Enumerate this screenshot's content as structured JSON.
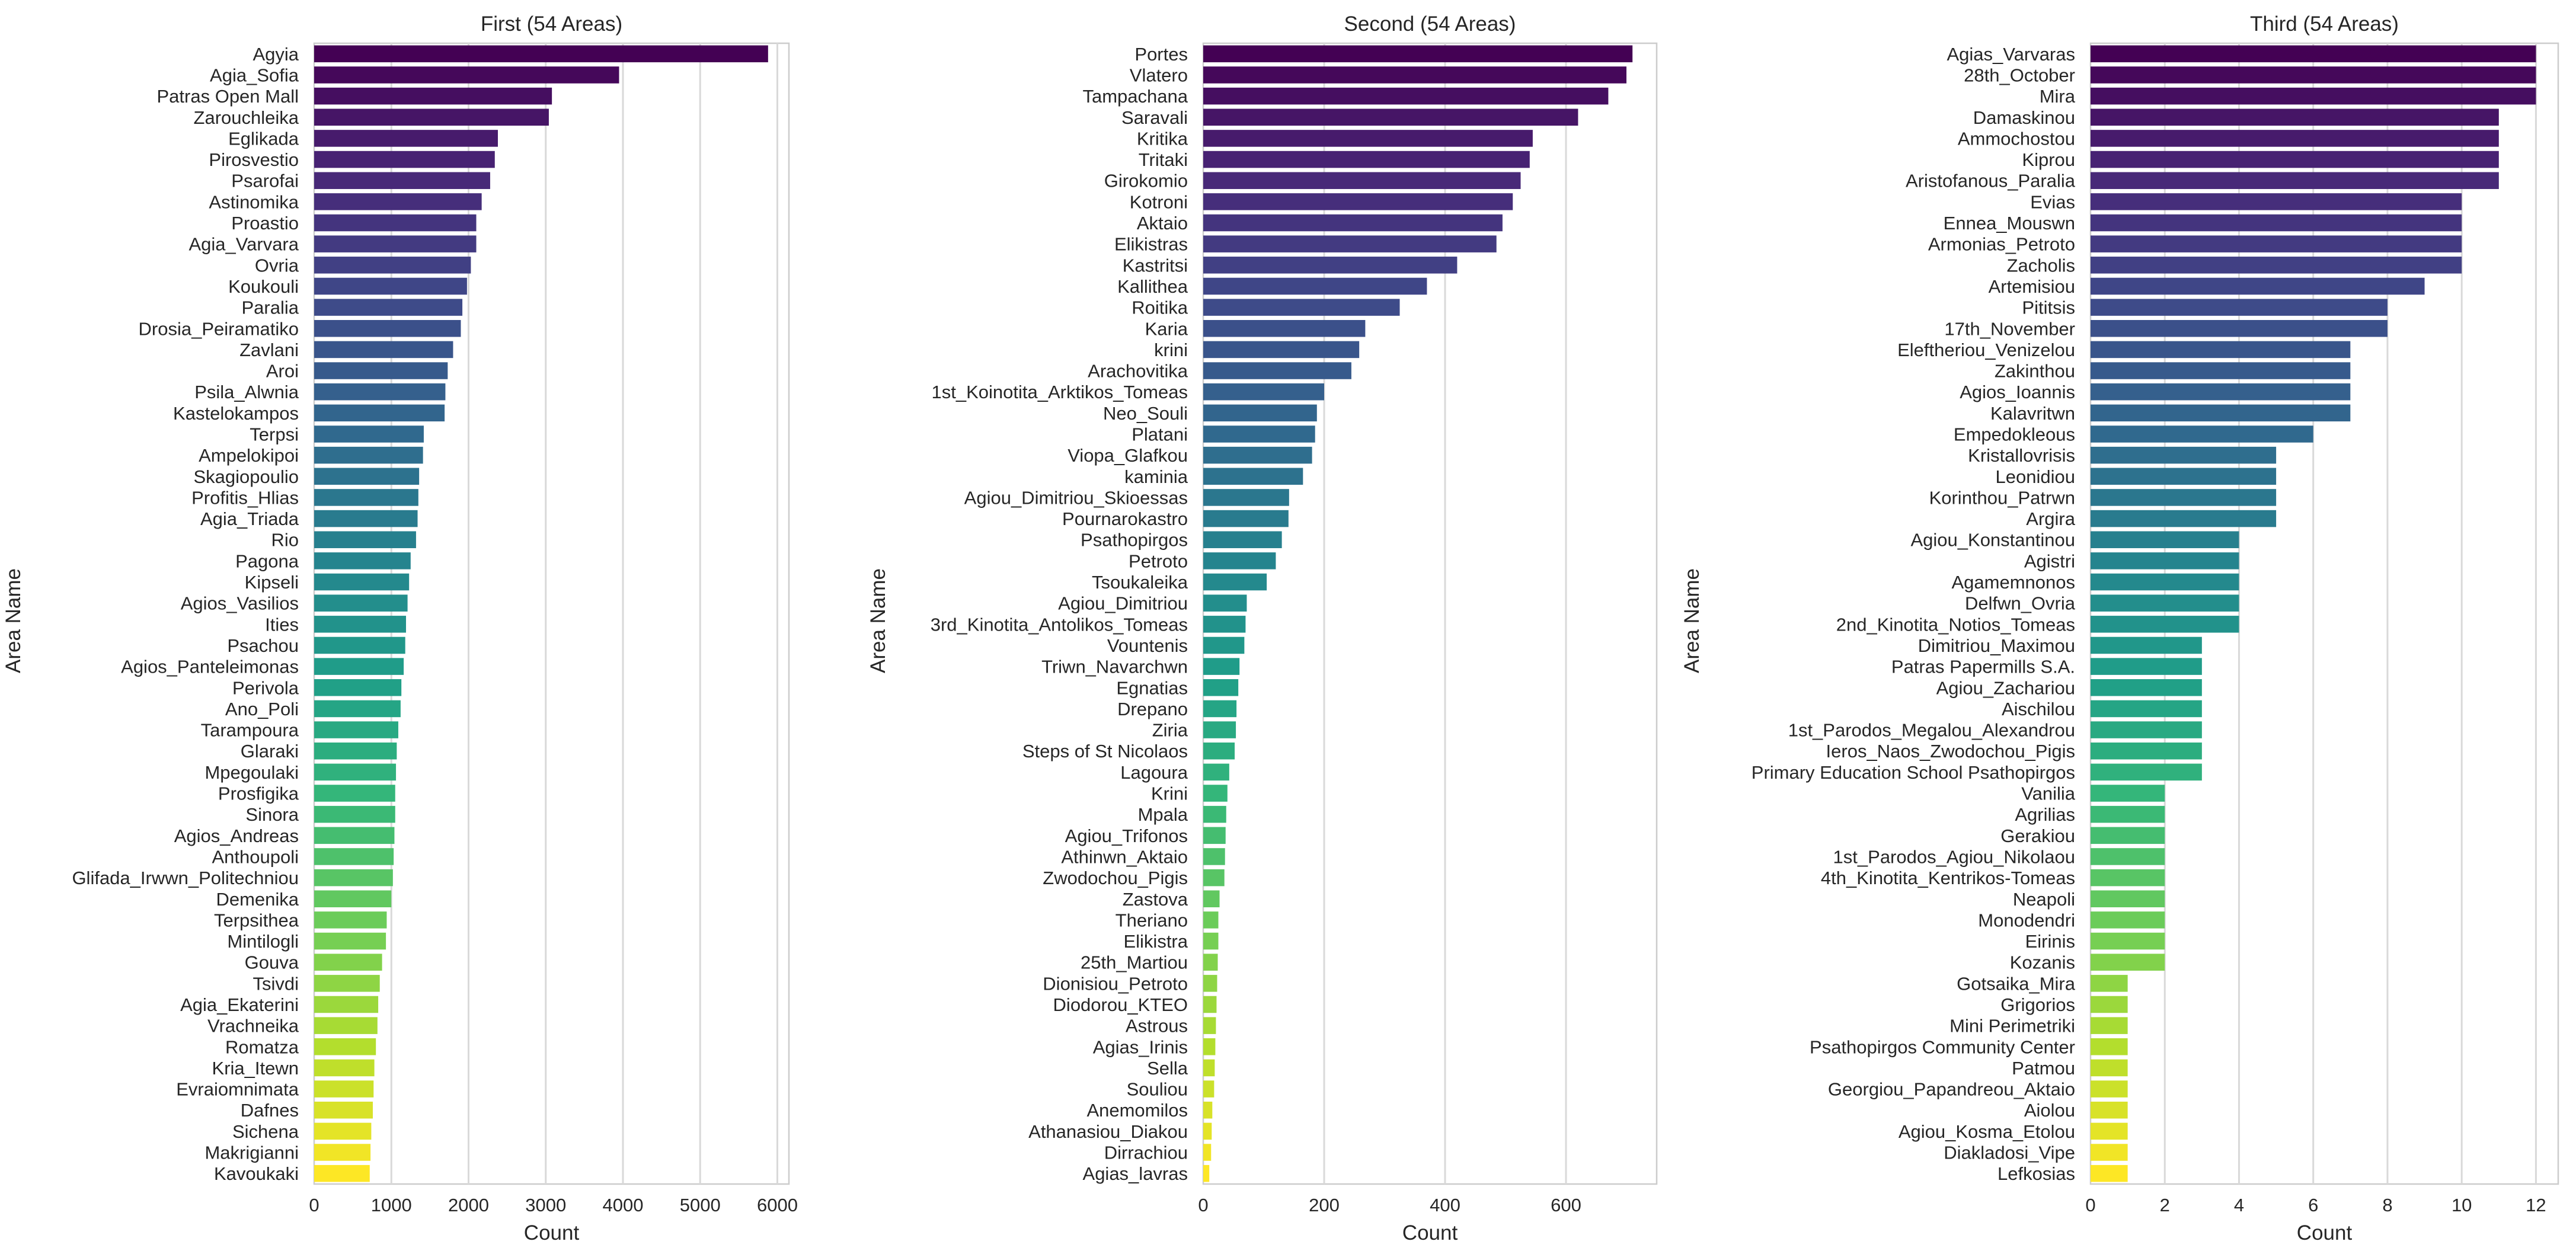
{
  "chart_data": [
    {
      "type": "bar",
      "orientation": "horizontal",
      "palette": "viridis",
      "title": "First (54 Areas)",
      "xlabel": "Count",
      "ylabel": "Area Name",
      "xlim": [
        0,
        6150
      ],
      "xticks": [
        0,
        1000,
        2000,
        3000,
        4000,
        5000,
        6000
      ],
      "grid": "vertical",
      "categories": [
        "Agyia",
        "Agia_Sofia",
        "Patras Open Mall",
        "Zarouchleika",
        "Eglikada",
        "Pirosvestio",
        "Psarofai",
        "Astinomika",
        "Proastio",
        "Agia_Varvara",
        "Ovria",
        "Koukouli",
        "Paralia",
        "Drosia_Peiramatiko",
        "Zavlani",
        "Aroi",
        "Psila_Alwnia",
        "Kastelokampos",
        "Terpsi",
        "Ampelokipoi",
        "Skagiopoulio",
        "Profitis_Hlias",
        "Agia_Triada",
        "Rio",
        "Pagona",
        "Kipseli",
        "Agios_Vasilios",
        "Ities",
        "Psachou",
        "Agios_Panteleimonas",
        "Perivola",
        "Ano_Poli",
        "Tarampoura",
        "Glaraki",
        "Mpegoulaki",
        "Prosfigika",
        "Sinora",
        "Agios_Andreas",
        "Anthoupoli",
        "Glifada_Irwwn_Politechniou",
        "Demenika",
        "Terpsithea",
        "Mintilogli",
        "Gouva",
        "Tsivdi",
        "Agia_Ekaterini",
        "Vrachneika",
        "Romatza",
        "Kria_Itewn",
        "Evraiomnimata",
        "Dafnes",
        "Sichena",
        "Makrigianni",
        "Kavoukaki"
      ],
      "values": [
        5880,
        3950,
        3080,
        3040,
        2380,
        2340,
        2280,
        2170,
        2100,
        2100,
        2030,
        1980,
        1920,
        1900,
        1800,
        1730,
        1700,
        1690,
        1420,
        1410,
        1360,
        1350,
        1340,
        1320,
        1250,
        1230,
        1210,
        1190,
        1180,
        1160,
        1130,
        1120,
        1090,
        1070,
        1060,
        1050,
        1050,
        1040,
        1030,
        1020,
        1000,
        940,
        930,
        880,
        850,
        830,
        820,
        800,
        780,
        770,
        760,
        740,
        730,
        720
      ]
    },
    {
      "type": "bar",
      "orientation": "horizontal",
      "palette": "viridis",
      "title": "Second (54 Areas)",
      "xlabel": "Count",
      "ylabel": "Area Name",
      "xlim": [
        0,
        750
      ],
      "xticks": [
        0,
        200,
        400,
        600
      ],
      "grid": "vertical",
      "categories": [
        "Portes",
        "Vlatero",
        "Tampachana",
        "Saravali",
        "Kritika",
        "Tritaki",
        "Girokomio",
        "Kotroni",
        "Aktaio",
        "Elikistras",
        "Kastritsi",
        "Kallithea",
        "Roitika",
        "Karia",
        "krini",
        "Arachovitika",
        "1st_Koinotita_Arktikos_Tomeas",
        "Neo_Souli",
        "Platani",
        "Viopa_Glafkou",
        "kaminia",
        "Agiou_Dimitriou_Skioessas",
        "Pournarokastro",
        "Psathopirgos",
        "Petroto",
        "Tsoukaleika",
        "Agiou_Dimitriou",
        "3rd_Kinotita_Antolikos_Tomeas",
        "Vountenis",
        "Triwn_Navarchwn",
        "Egnatias",
        "Drepano",
        "Ziria",
        "Steps of St Nicolaos",
        "Lagoura",
        "Krini",
        "Mpala",
        "Agiou_Trifonos",
        "Athinwn_Aktaio",
        "Zwodochou_Pigis",
        "Zastova",
        "Theriano",
        "Elikistra",
        "25th_Martiou",
        "Dionisiou_Petroto",
        "Diodorou_KTEO",
        "Astrous",
        "Agias_Irinis",
        "Sella",
        "Souliou",
        "Anemomilos",
        "Athanasiou_Diakou",
        "Dirrachiou",
        "Agias_lavras"
      ],
      "values": [
        710,
        700,
        670,
        620,
        545,
        540,
        525,
        512,
        495,
        485,
        420,
        370,
        325,
        268,
        258,
        245,
        200,
        188,
        185,
        180,
        165,
        142,
        141,
        130,
        120,
        105,
        72,
        70,
        68,
        60,
        58,
        55,
        54,
        52,
        43,
        40,
        38,
        37,
        36,
        35,
        27,
        25,
        25,
        24,
        23,
        22,
        21,
        20,
        19,
        18,
        15,
        14,
        13,
        10
      ]
    },
    {
      "type": "bar",
      "orientation": "horizontal",
      "palette": "viridis",
      "title": "Third (54 Areas)",
      "xlabel": "Count",
      "ylabel": "Area Name",
      "xlim": [
        0,
        12.6
      ],
      "xticks": [
        0,
        2,
        4,
        6,
        8,
        10,
        12
      ],
      "grid": "vertical",
      "categories": [
        "Agias_Varvaras",
        "28th_October",
        "Mira",
        "Damaskinou",
        "Ammochostou",
        "Kiprou",
        "Aristofanous_Paralia",
        "Evias",
        "Ennea_Mouswn",
        "Armonias_Petroto",
        "Zacholis",
        "Artemisiou",
        "Pititsis",
        "17th_November",
        "Eleftheriou_Venizelou",
        "Zakinthou",
        "Agios_Ioannis",
        "Kalavritwn",
        "Empedokleous",
        "Kristallovrisis",
        "Leonidiou",
        "Korinthou_Patrwn",
        "Argira",
        "Agiou_Konstantinou",
        "Agistri",
        "Agamemnonos",
        "Delfwn_Ovria",
        "2nd_Kinotita_Notios_Tomeas",
        "Dimitriou_Maximou",
        "Patras Papermills S.A.",
        "Agiou_Zachariou",
        "Aischilou",
        "1st_Parodos_Megalou_Alexandrou",
        "Ieros_Naos_Zwodochou_Pigis",
        "Primary Education School Psathopirgos",
        "Vanilia",
        "Agrilias",
        "Gerakiou",
        "1st_Parodos_Agiou_Nikolaou",
        "4th_Kinotita_Kentrikos-Tomeas",
        "Neapoli",
        "Monodendri",
        "Eirinis",
        "Kozanis",
        "Gotsaika_Mira",
        "Grigorios",
        "Mini Perimetriki",
        "Psathopirgos Community Center",
        "Patmou",
        "Georgiou_Papandreou_Aktaio",
        "Aiolou",
        "Agiou_Kosma_Etolou",
        "Diakladosi_Vipe",
        "Lefkosias"
      ],
      "values": [
        12,
        12,
        12,
        11,
        11,
        11,
        11,
        10,
        10,
        10,
        10,
        9,
        8,
        8,
        7,
        7,
        7,
        7,
        6,
        5,
        5,
        5,
        5,
        4,
        4,
        4,
        4,
        4,
        3,
        3,
        3,
        3,
        3,
        3,
        3,
        2,
        2,
        2,
        2,
        2,
        2,
        2,
        2,
        2,
        1,
        1,
        1,
        1,
        1,
        1,
        1,
        1,
        1,
        1
      ]
    }
  ]
}
